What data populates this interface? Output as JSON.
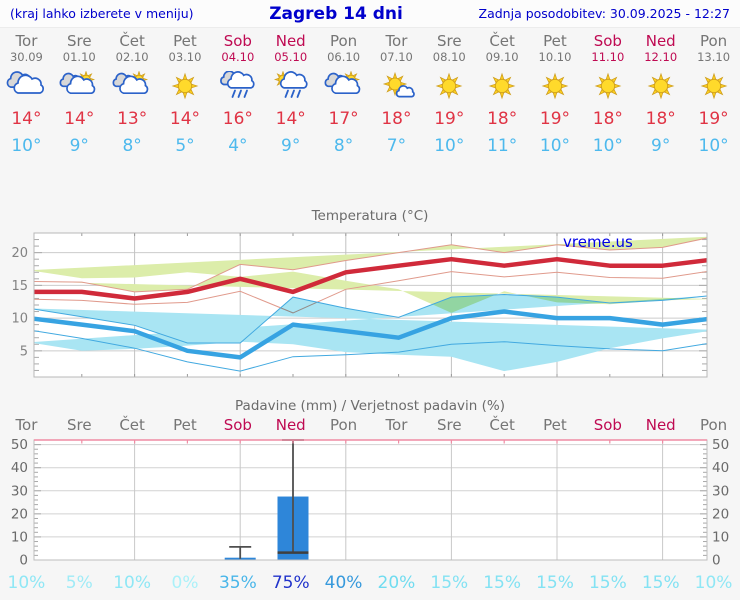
{
  "header": {
    "left_note": "(kraj lahko izberete v meniju)",
    "title": "Zagreb 14 dni",
    "updated": "Zadnja posodobitev: 30.09.2025 - 12:27"
  },
  "colors": {
    "link_blue": "#0000cc",
    "weekday_gray": "#757575",
    "weekend_crimson": "#bf0a52",
    "tmax_red": "#e03445",
    "tmin_blue": "#4db9ed",
    "tmax_line": "#d02a3a",
    "tmax_band_fill": "#dcedaa",
    "tmax_band_edge": "#e09a8c",
    "tmin_line": "#37a3e2",
    "tmin_band_fill": "#a9e5f3",
    "tmin_band_edge": "#42a9e0",
    "bar_blue": "#2e86d9",
    "whisker_gray": "#4f4f4f",
    "precip_top_border": "#ef8ca4",
    "watermark_blue": "#0000e6"
  },
  "days": [
    {
      "name": "Tor",
      "date": "30.09",
      "weekend": false,
      "icon": "cloudy",
      "tmax": "14°",
      "tmin": "10°",
      "prob": "10%",
      "prob_color": "#8fe7f5"
    },
    {
      "name": "Sre",
      "date": "01.10",
      "weekend": false,
      "icon": "partly-cloudy",
      "tmax": "14°",
      "tmin": "9°",
      "prob": "5%",
      "prob_color": "#9febf7"
    },
    {
      "name": "Čet",
      "date": "02.10",
      "weekend": false,
      "icon": "partly-cloudy",
      "tmax": "13°",
      "tmin": "8°",
      "prob": "10%",
      "prob_color": "#8fe7f5"
    },
    {
      "name": "Pet",
      "date": "03.10",
      "weekend": false,
      "icon": "sunny",
      "tmax": "14°",
      "tmin": "5°",
      "prob": "0%",
      "prob_color": "#abf1f9"
    },
    {
      "name": "Sob",
      "date": "04.10",
      "weekend": true,
      "icon": "rain",
      "tmax": "16°",
      "tmin": "4°",
      "prob": "35%",
      "prob_color": "#49b6e9"
    },
    {
      "name": "Ned",
      "date": "05.10",
      "weekend": true,
      "icon": "sun-rain",
      "tmax": "14°",
      "tmin": "9°",
      "prob": "75%",
      "prob_color": "#2133cb"
    },
    {
      "name": "Pon",
      "date": "06.10",
      "weekend": false,
      "icon": "partly-cloudy",
      "tmax": "17°",
      "tmin": "8°",
      "prob": "40%",
      "prob_color": "#3699dc"
    },
    {
      "name": "Tor",
      "date": "07.10",
      "weekend": false,
      "icon": "mostly-sunny",
      "tmax": "18°",
      "tmin": "7°",
      "prob": "20%",
      "prob_color": "#70dcf0"
    },
    {
      "name": "Sre",
      "date": "08.10",
      "weekend": false,
      "icon": "sunny",
      "tmax": "19°",
      "tmin": "10°",
      "prob": "15%",
      "prob_color": "#83e2f3"
    },
    {
      "name": "Čet",
      "date": "09.10",
      "weekend": false,
      "icon": "sunny",
      "tmax": "18°",
      "tmin": "11°",
      "prob": "15%",
      "prob_color": "#83e2f3"
    },
    {
      "name": "Pet",
      "date": "10.10",
      "weekend": false,
      "icon": "sunny",
      "tmax": "19°",
      "tmin": "10°",
      "prob": "15%",
      "prob_color": "#83e2f3"
    },
    {
      "name": "Sob",
      "date": "11.10",
      "weekend": true,
      "icon": "sunny",
      "tmax": "18°",
      "tmin": "10°",
      "prob": "15%",
      "prob_color": "#83e2f3"
    },
    {
      "name": "Ned",
      "date": "12.10",
      "weekend": true,
      "icon": "sunny",
      "tmax": "18°",
      "tmin": "9°",
      "prob": "15%",
      "prob_color": "#83e2f3"
    },
    {
      "name": "Pon",
      "date": "13.10",
      "weekend": false,
      "icon": "sunny",
      "tmax": "19°",
      "tmin": "10°",
      "prob": "10%",
      "prob_color": "#8fe7f5"
    }
  ],
  "chart_data": [
    {
      "type": "line",
      "title": "Temperatura (°C)",
      "watermark": "vreme.us",
      "categories": [
        "Tor 30.09",
        "Sre 01.10",
        "Čet 02.10",
        "Pet 03.10",
        "Sob 04.10",
        "Ned 05.10",
        "Pon 06.10",
        "Tor 07.10",
        "Sre 08.10",
        "Čet 09.10",
        "Pet 10.10",
        "Sob 11.10",
        "Ned 12.10",
        "Pon 13.10"
      ],
      "series": [
        {
          "name": "tmax",
          "values": [
            14,
            14,
            13,
            14,
            16,
            14,
            17,
            18,
            19,
            18,
            19,
            18,
            18,
            19
          ]
        },
        {
          "name": "tmax_range_high",
          "values": [
            15.6,
            15.5,
            14.0,
            14.4,
            18.2,
            17.4,
            18.8,
            20.0,
            21.2,
            20.0,
            21.2,
            20.4,
            20.8,
            22.5
          ]
        },
        {
          "name": "tmax_range_low",
          "values": [
            12.9,
            12.7,
            12.1,
            12.4,
            14.1,
            10.8,
            14.4,
            15.7,
            17.1,
            16.3,
            17.0,
            16.2,
            16.1,
            17.3
          ]
        },
        {
          "name": "tmin",
          "values": [
            10,
            9,
            8,
            5,
            4,
            9,
            8,
            7,
            10,
            11,
            10,
            10,
            9,
            10
          ]
        },
        {
          "name": "tmin_range_high",
          "values": [
            11.5,
            10.2,
            8.9,
            6.2,
            6.2,
            13.2,
            11.5,
            10.1,
            13.2,
            13.6,
            13.2,
            12.3,
            12.7,
            13.5
          ]
        },
        {
          "name": "tmin_range_low",
          "values": [
            8.2,
            6.9,
            5.4,
            3.3,
            1.9,
            4.1,
            4.4,
            4.8,
            6.0,
            6.4,
            5.8,
            5.3,
            5.0,
            6.3
          ]
        }
      ],
      "ylim": [
        1,
        23
      ],
      "yticks": [
        5,
        10,
        15,
        20
      ],
      "grid": true,
      "legend": false
    },
    {
      "type": "bar",
      "title": "Padavine (mm) / Verjetnost padavin (%)",
      "categories": [
        "Tor",
        "Sre",
        "Čet",
        "Pet",
        "Sob",
        "Ned",
        "Pon",
        "Tor",
        "Sre",
        "Čet",
        "Pet",
        "Sob",
        "Ned",
        "Pon"
      ],
      "values_mm": [
        0,
        0,
        0,
        0,
        1,
        27.5,
        0,
        0,
        0,
        0,
        0,
        0,
        0,
        0
      ],
      "whiskers": [
        null,
        null,
        null,
        null,
        {
          "low": 0.5,
          "high": 5.7,
          "low_cap": false
        },
        {
          "low": 3.2,
          "high": 52,
          "low_cap": true
        },
        null,
        null,
        null,
        null,
        null,
        null,
        null,
        null
      ],
      "probabilities_pct": [
        10,
        5,
        10,
        0,
        35,
        75,
        40,
        20,
        15,
        15,
        15,
        15,
        15,
        10
      ],
      "ylim": [
        0,
        52
      ],
      "yticks": [
        0,
        10,
        20,
        30,
        40,
        50
      ],
      "grid": true,
      "legend": false
    }
  ]
}
